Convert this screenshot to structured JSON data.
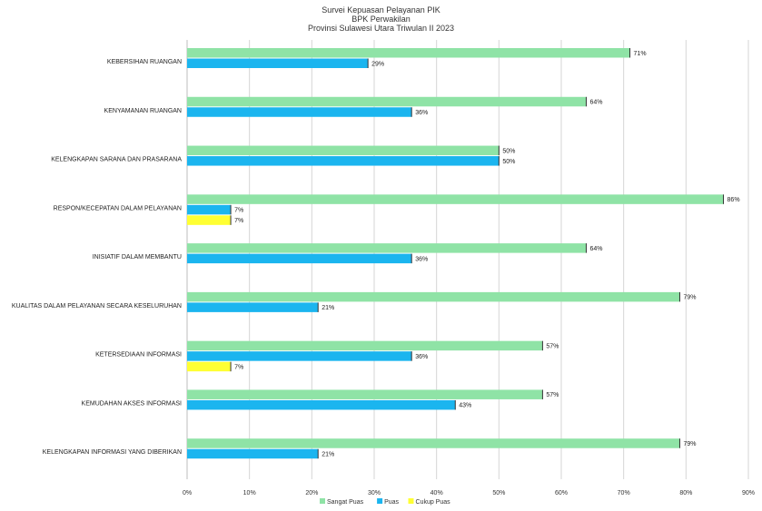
{
  "chart_data": {
    "type": "bar",
    "orientation": "horizontal",
    "title": [
      "Survei Kepuasan Pelayanan PIK",
      "BPK Perwakilan",
      "Provinsi Sulawesi Utara Triwulan II 2023"
    ],
    "categories": [
      "KEBERSIHAN RUANGAN",
      "KENYAMANAN RUANGAN",
      "KELENGKAPAN SARANA DAN PRASARANA",
      "RESPON/KECEPATAN DALAM PELAYANAN",
      "INISIATIF DALAM MEMBANTU",
      "KUALITAS DALAM PELAYANAN SECARA KESELURUHAN",
      "KETERSEDIAAN INFORMASI",
      "KEMUDAHAN AKSES INFORMASI",
      "KELENGKAPAN INFORMASI YANG DIBERIKAN"
    ],
    "series": [
      {
        "name": "Sangat Puas",
        "color": "#8fe3a6",
        "values": [
          71,
          64,
          50,
          86,
          64,
          79,
          57,
          57,
          79
        ],
        "labels": [
          "71%",
          "64%",
          "50%",
          "86%",
          "64%",
          "79%",
          "57%",
          "57%",
          "79%"
        ]
      },
      {
        "name": "Puas",
        "color": "#1bb5ef",
        "values": [
          29,
          36,
          50,
          7,
          36,
          21,
          36,
          43,
          21
        ],
        "labels": [
          "29%",
          "36%",
          "50%",
          "7%",
          "36%",
          "21%",
          "36%",
          "43%",
          "21%"
        ]
      },
      {
        "name": "Cukup Puas",
        "color": "#ffff33",
        "values": [
          null,
          null,
          null,
          7,
          null,
          null,
          7,
          null,
          null
        ],
        "labels": [
          null,
          null,
          null,
          "7%",
          null,
          null,
          "7%",
          null,
          null
        ]
      }
    ],
    "xlim": [
      0,
      90
    ],
    "xticks": [
      "0%",
      "10%",
      "20%",
      "30%",
      "40%",
      "50%",
      "60%",
      "70%",
      "80%",
      "90%"
    ],
    "grid": true,
    "legend_position": "bottom"
  }
}
